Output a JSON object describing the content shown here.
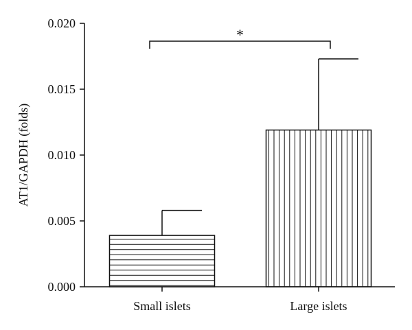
{
  "chart_data": {
    "type": "bar",
    "title": "",
    "xlabel": "",
    "ylabel": "AT1/GAPDH (folds)",
    "categories": [
      "Small islets",
      "Large islets"
    ],
    "values": [
      0.0039,
      0.0119
    ],
    "error_upper": [
      0.0058,
      0.0173
    ],
    "fill_patterns": [
      "horizontal-lines",
      "vertical-lines"
    ],
    "ylim": [
      0,
      0.02
    ],
    "yticks": [
      0.0,
      0.005,
      0.01,
      0.015,
      0.02
    ],
    "ytick_labels": [
      "0.000",
      "0.005",
      "0.010",
      "0.015",
      "0.020"
    ],
    "grid": false,
    "legend": null,
    "significance": {
      "between": [
        0,
        1
      ],
      "label": "*"
    }
  },
  "colors": {
    "bar_stroke": "#111111",
    "axis": "#111111",
    "background": "#ffffff"
  }
}
